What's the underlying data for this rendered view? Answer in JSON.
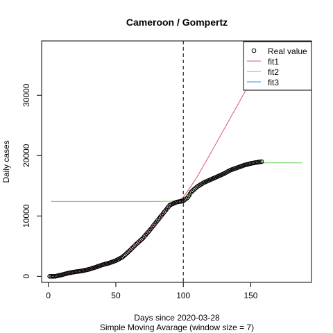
{
  "chart_data": {
    "type": "line",
    "title": "Cameroon / Gompertz",
    "xlabel": "Days since 2020-03-28",
    "xlabel2": "Simple Moving Avarage (window size = 7)",
    "ylabel": "Daily cases",
    "xlim": [
      -5,
      195
    ],
    "ylim": [
      -1000,
      39000
    ],
    "x_ticks": [
      0,
      50,
      100,
      150
    ],
    "y_ticks": [
      0,
      10000,
      20000,
      30000
    ],
    "vline_x": 100,
    "grid": false,
    "legend_position": "top-right",
    "legend": [
      {
        "label": "Real value",
        "kind": "point",
        "color": "#000000"
      },
      {
        "label": "fit1",
        "kind": "line",
        "color": "#DF536B"
      },
      {
        "label": "fit2",
        "kind": "line",
        "color": "#61D04F"
      },
      {
        "label": "fit3",
        "kind": "line",
        "color": "#2297E6"
      }
    ],
    "real_value": {
      "x": [
        1,
        5,
        10,
        15,
        20,
        25,
        30,
        35,
        40,
        45,
        50,
        55,
        60,
        65,
        70,
        75,
        80,
        85,
        90,
        95,
        100,
        103,
        106,
        110,
        115,
        120,
        125,
        130,
        135,
        140,
        145,
        150,
        155,
        158
      ],
      "y": [
        0,
        0,
        250,
        550,
        750,
        900,
        1150,
        1500,
        1900,
        2200,
        2600,
        3200,
        4200,
        5300,
        6300,
        7600,
        9000,
        10400,
        11800,
        12300,
        12500,
        13000,
        14000,
        14800,
        15500,
        16000,
        16500,
        17000,
        17600,
        18000,
        18400,
        18700,
        18900,
        19000
      ]
    },
    "fit1": {
      "x": [
        1,
        10,
        20,
        30,
        40,
        50,
        60,
        70,
        80,
        90,
        95,
        100,
        105,
        110,
        120,
        130,
        140,
        150,
        155
      ],
      "y": [
        0,
        250,
        750,
        1150,
        1900,
        2600,
        4200,
        6300,
        9000,
        11800,
        12400,
        13100,
        14700,
        16400,
        20300,
        24300,
        28300,
        32300,
        34300
      ]
    },
    "fit2": {
      "x": [
        2,
        20,
        40,
        60,
        80,
        90,
        95,
        100,
        103,
        106,
        110,
        115,
        120,
        125,
        130,
        135,
        140,
        145,
        150,
        155,
        160,
        170,
        180,
        188
      ],
      "y": [
        12400,
        12400,
        12400,
        12400,
        12400,
        12450,
        12500,
        12600,
        13000,
        14000,
        14800,
        15500,
        16000,
        16500,
        17000,
        17600,
        18000,
        18400,
        18600,
        18750,
        18800,
        18800,
        18800,
        18800
      ]
    }
  }
}
